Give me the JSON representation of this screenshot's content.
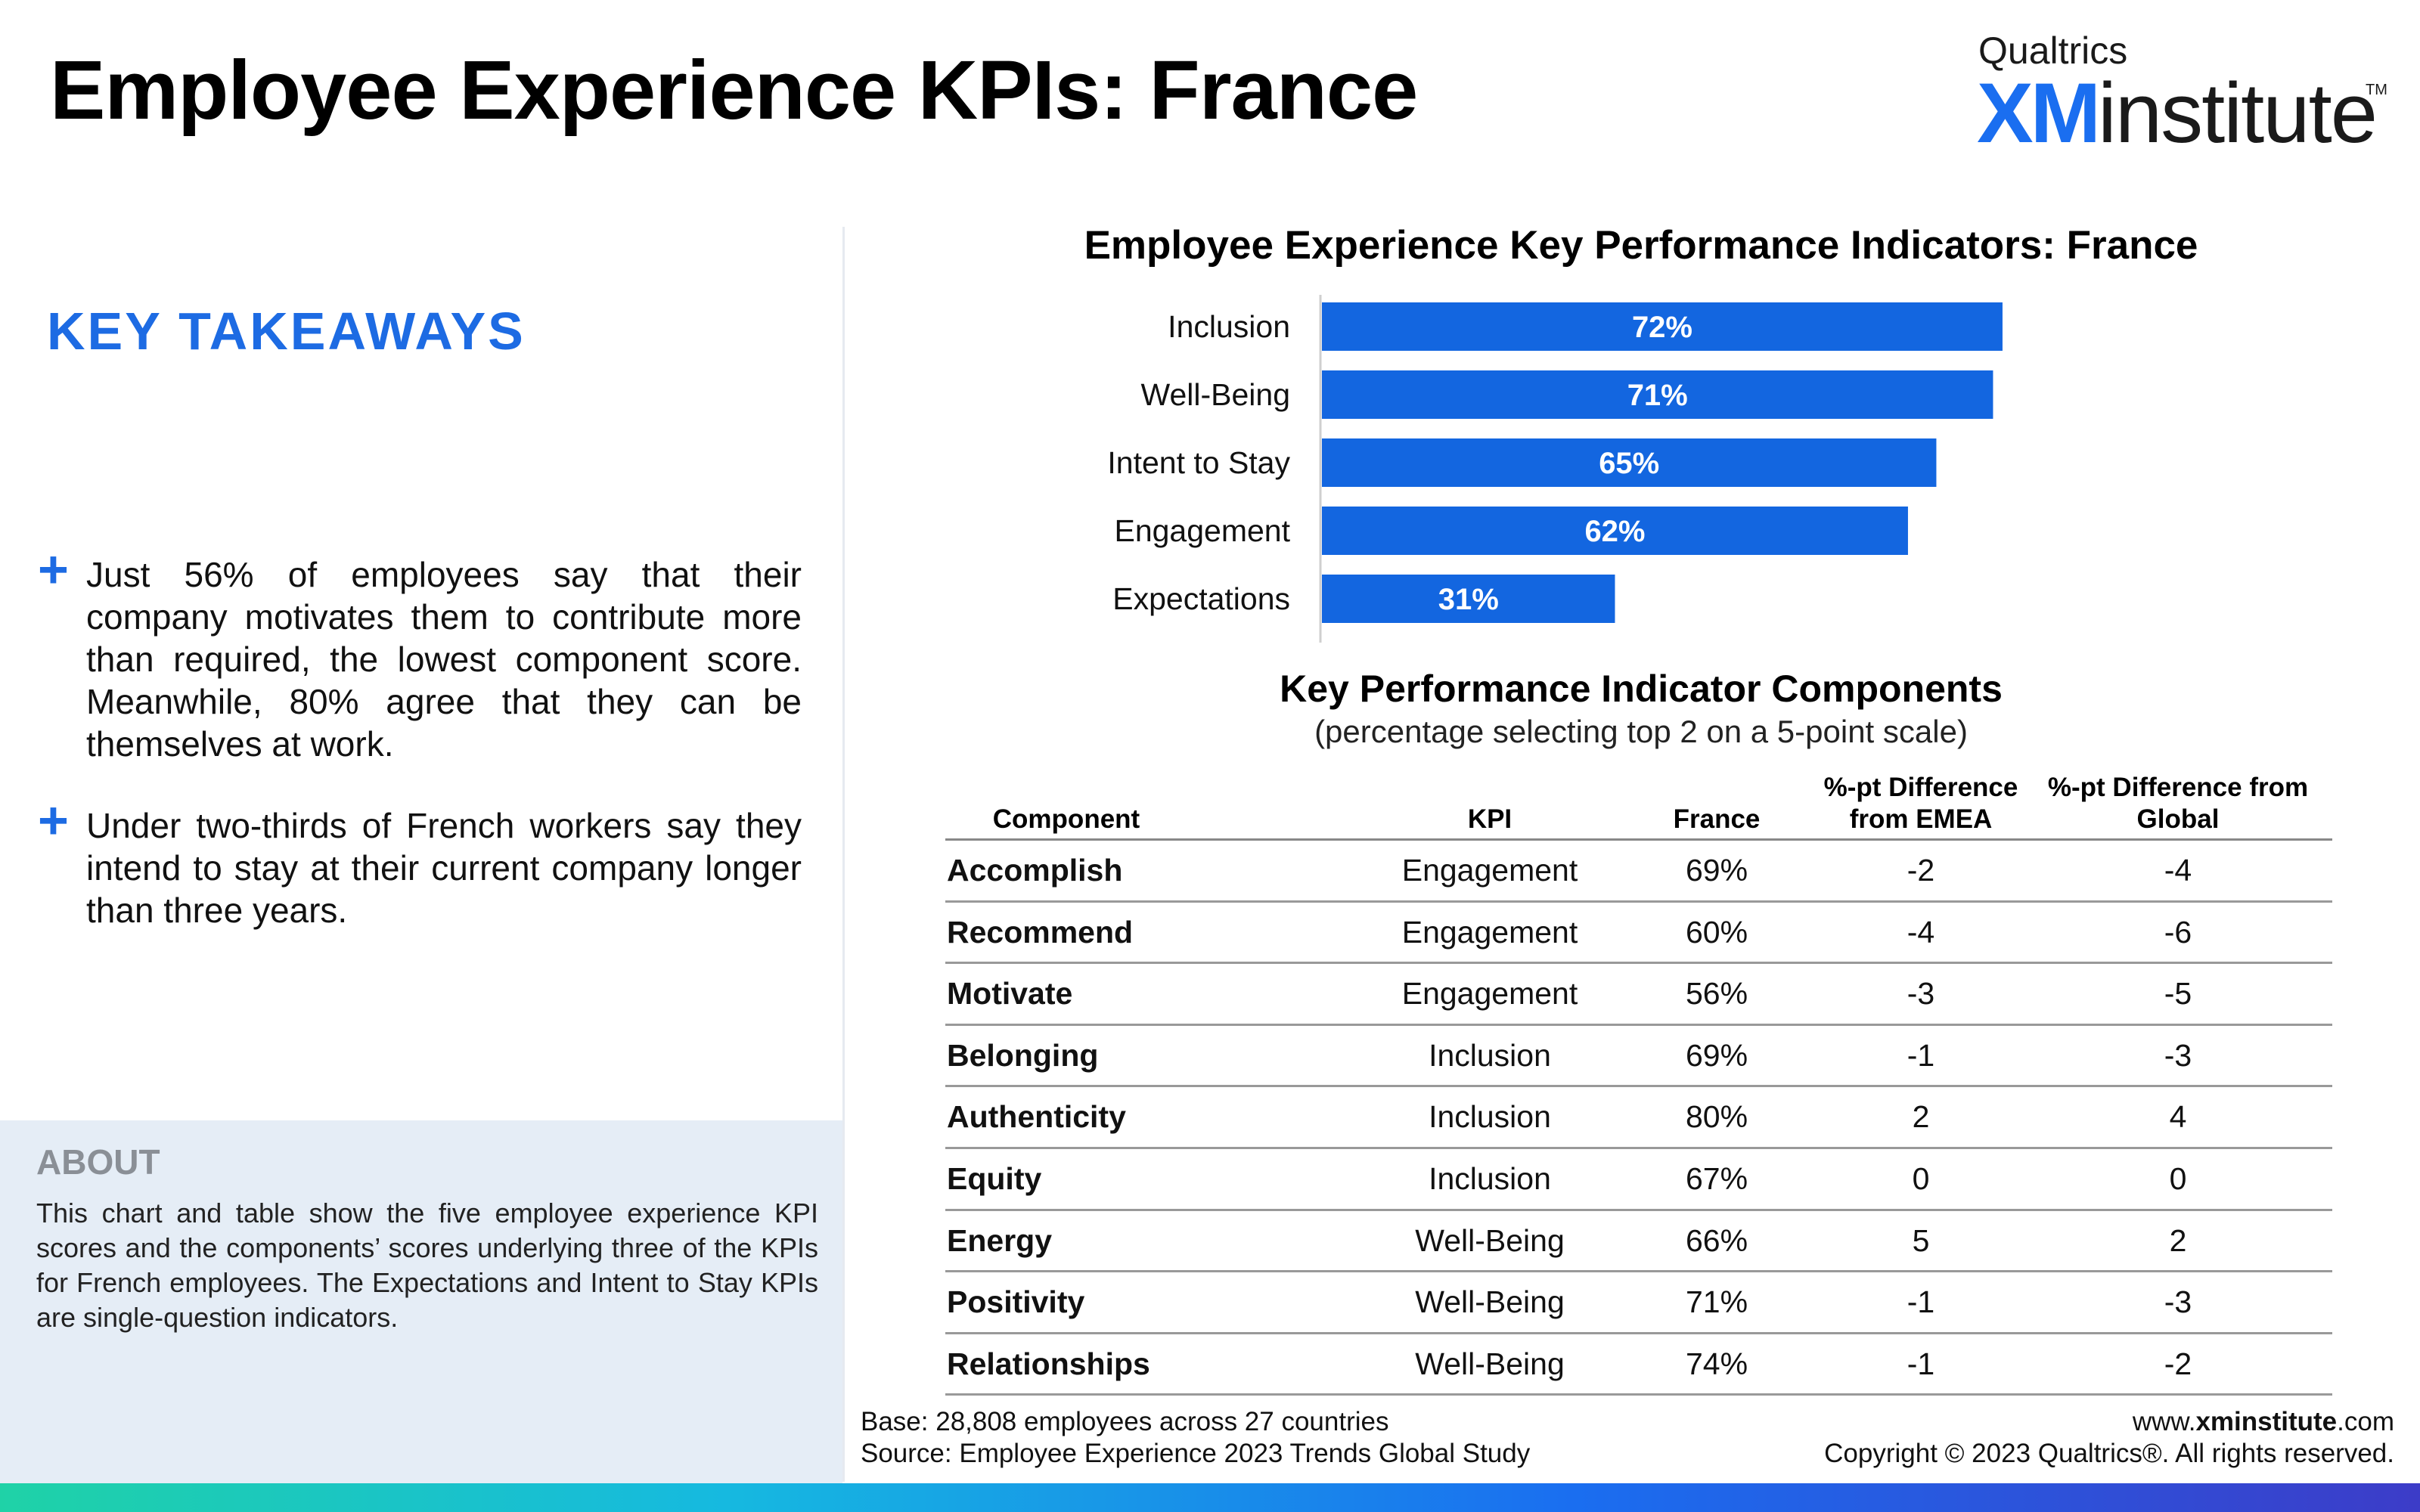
{
  "header": {
    "title": "Employee Experience KPIs: France",
    "logo": {
      "top": "Qualtrics",
      "xm": "XM",
      "institute": "institute",
      "tm": "TM"
    }
  },
  "takeaways": {
    "heading": "KEY TAKEAWAYS",
    "bullets": [
      "Just 56% of employees say that their company motivates them to contribute more than required, the lowest component score. Meanwhile, 80% agree that they can be themselves at work.",
      "Under two-thirds of French workers say they intend to stay at their current company longer than three years."
    ]
  },
  "about": {
    "heading": "ABOUT",
    "text": "This chart and table show the five employee experience KPI scores and the components’ scores underlying three of the KPIs for French employees. The Expectations and Intent to Stay KPIs are single-question indicators."
  },
  "chart_data": {
    "type": "bar",
    "orientation": "horizontal",
    "title": "Employee Experience Key Performance Indicators: France",
    "categories": [
      "Inclusion",
      "Well-Being",
      "Intent to Stay",
      "Engagement",
      "Expectations"
    ],
    "values": [
      72,
      71,
      65,
      62,
      31
    ],
    "value_labels": [
      "72%",
      "71%",
      "65%",
      "62%",
      "31%"
    ],
    "xlim": [
      0,
      100
    ],
    "bar_color": "#1366e0",
    "grid": false,
    "legend": "none"
  },
  "table": {
    "title": "Key Performance Indicator Components",
    "subtitle": "(percentage selecting top 2 on a 5-point scale)",
    "headers": {
      "component": "Component",
      "kpi": "KPI",
      "france": "France",
      "emea": "%-pt Difference from EMEA",
      "global": "%-pt Difference from Global"
    },
    "rows": [
      {
        "component": "Accomplish",
        "kpi": "Engagement",
        "france": "69%",
        "emea": "-2",
        "global": "-4"
      },
      {
        "component": "Recommend",
        "kpi": "Engagement",
        "france": "60%",
        "emea": "-4",
        "global": "-6"
      },
      {
        "component": "Motivate",
        "kpi": "Engagement",
        "france": "56%",
        "emea": "-3",
        "global": "-5"
      },
      {
        "component": "Belonging",
        "kpi": "Inclusion",
        "france": "69%",
        "emea": "-1",
        "global": "-3"
      },
      {
        "component": "Authenticity",
        "kpi": "Inclusion",
        "france": "80%",
        "emea": "2",
        "global": "4"
      },
      {
        "component": "Equity",
        "kpi": "Inclusion",
        "france": "67%",
        "emea": "0",
        "global": "0"
      },
      {
        "component": "Energy",
        "kpi": "Well-Being",
        "france": "66%",
        "emea": "5",
        "global": "2"
      },
      {
        "component": "Positivity",
        "kpi": "Well-Being",
        "france": "71%",
        "emea": "-1",
        "global": "-3"
      },
      {
        "component": "Relationships",
        "kpi": "Well-Being",
        "france": "74%",
        "emea": "-1",
        "global": "-2"
      }
    ]
  },
  "footer": {
    "base": "Base: 28,808 employees across 27 countries",
    "source": "Source: Employee Experience 2023 Trends Global Study",
    "url_prefix": "www.",
    "url_bold": "xminstitute",
    "url_suffix": ".com",
    "copyright": "Copyright © 2023 Qualtrics®. All rights reserved."
  },
  "colors": {
    "accent": "#1d6be3",
    "bar": "#1366e0",
    "about_bg": "#e5edf6"
  }
}
